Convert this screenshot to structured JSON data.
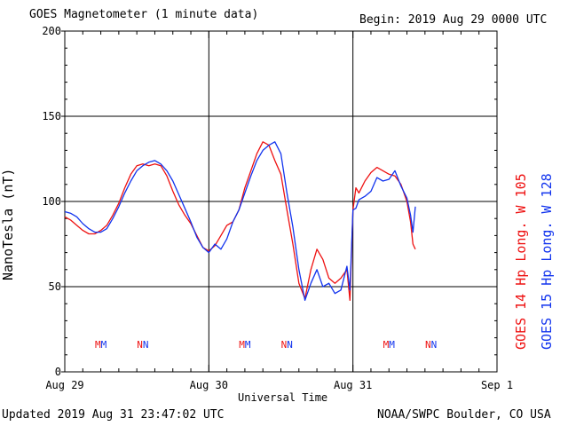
{
  "header": {
    "title": "GOES Magnetometer (1 minute data)",
    "begin": "Begin:  2019 Aug 29 0000 UTC"
  },
  "footer": {
    "updated": "Updated 2019 Aug 31 23:47:02 UTC",
    "credit": "NOAA/SWPC Boulder, CO USA"
  },
  "chart_data": {
    "type": "line",
    "ylabel": "NanoTesla (nT)",
    "xlabel": "Universal Time",
    "ylim": [
      0,
      200
    ],
    "xlim": [
      0,
      72
    ],
    "grid": true,
    "yticks": [
      "0",
      "50",
      "100",
      "150",
      "200"
    ],
    "xticks": [
      {
        "hour": 0,
        "label": "Aug 29"
      },
      {
        "hour": 24,
        "label": "Aug 30"
      },
      {
        "hour": 48,
        "label": "Aug 31"
      },
      {
        "hour": 72,
        "label": "Sep 1"
      }
    ],
    "colors": {
      "red": "#ee1111",
      "blue": "#1133ee"
    },
    "series": [
      {
        "name": "GOES 14 Hp  Long. W 105",
        "color": "#ee1111",
        "points": [
          [
            0,
            91
          ],
          [
            1,
            89
          ],
          [
            2,
            86
          ],
          [
            3,
            83
          ],
          [
            4,
            81
          ],
          [
            5,
            81
          ],
          [
            6,
            83
          ],
          [
            7,
            86
          ],
          [
            8,
            92
          ],
          [
            9,
            99
          ],
          [
            10,
            108
          ],
          [
            11,
            116
          ],
          [
            12,
            121
          ],
          [
            13,
            122
          ],
          [
            14,
            121
          ],
          [
            15,
            122
          ],
          [
            16,
            121
          ],
          [
            17,
            115
          ],
          [
            18,
            106
          ],
          [
            19,
            98
          ],
          [
            20,
            92
          ],
          [
            21,
            87
          ],
          [
            22,
            80
          ],
          [
            23,
            73
          ],
          [
            24,
            71
          ],
          [
            25,
            74
          ],
          [
            26,
            80
          ],
          [
            27,
            86
          ],
          [
            28,
            88
          ],
          [
            29,
            95
          ],
          [
            30,
            108
          ],
          [
            31,
            118
          ],
          [
            32,
            128
          ],
          [
            33,
            135
          ],
          [
            34,
            133
          ],
          [
            35,
            124
          ],
          [
            36,
            116
          ],
          [
            37,
            95
          ],
          [
            38,
            75
          ],
          [
            39,
            52
          ],
          [
            40,
            43
          ],
          [
            41,
            60
          ],
          [
            42,
            72
          ],
          [
            43,
            66
          ],
          [
            44,
            55
          ],
          [
            45,
            52
          ],
          [
            46,
            55
          ],
          [
            47,
            60
          ],
          [
            47.5,
            42
          ],
          [
            48,
            95
          ],
          [
            48.5,
            108
          ],
          [
            49,
            105
          ],
          [
            50,
            112
          ],
          [
            51,
            117
          ],
          [
            52,
            120
          ],
          [
            53,
            118
          ],
          [
            54,
            116
          ],
          [
            55,
            115
          ],
          [
            56,
            110
          ],
          [
            57,
            100
          ],
          [
            57.6,
            88
          ],
          [
            58,
            75
          ],
          [
            58.4,
            72
          ]
        ]
      },
      {
        "name": "GOES 15 Hp  Long. W 128",
        "color": "#1133ee",
        "points": [
          [
            0,
            94
          ],
          [
            1,
            93
          ],
          [
            2,
            91
          ],
          [
            3,
            87
          ],
          [
            4,
            84
          ],
          [
            5,
            82
          ],
          [
            6,
            82
          ],
          [
            7,
            84
          ],
          [
            8,
            90
          ],
          [
            9,
            97
          ],
          [
            10,
            105
          ],
          [
            11,
            112
          ],
          [
            12,
            118
          ],
          [
            13,
            121
          ],
          [
            14,
            123
          ],
          [
            15,
            124
          ],
          [
            16,
            122
          ],
          [
            17,
            118
          ],
          [
            18,
            112
          ],
          [
            19,
            104
          ],
          [
            20,
            96
          ],
          [
            21,
            88
          ],
          [
            22,
            79
          ],
          [
            23,
            73
          ],
          [
            24,
            70
          ],
          [
            25,
            75
          ],
          [
            26,
            72
          ],
          [
            27,
            78
          ],
          [
            28,
            88
          ],
          [
            29,
            95
          ],
          [
            30,
            105
          ],
          [
            31,
            115
          ],
          [
            32,
            124
          ],
          [
            33,
            130
          ],
          [
            34,
            133
          ],
          [
            35,
            135
          ],
          [
            36,
            128
          ],
          [
            37,
            105
          ],
          [
            38,
            85
          ],
          [
            39,
            60
          ],
          [
            40,
            42
          ],
          [
            41,
            52
          ],
          [
            42,
            60
          ],
          [
            43,
            50
          ],
          [
            44,
            52
          ],
          [
            45,
            46
          ],
          [
            46,
            48
          ],
          [
            47,
            62
          ],
          [
            47.5,
            48
          ],
          [
            48,
            95
          ],
          [
            48.5,
            96
          ],
          [
            49,
            101
          ],
          [
            50,
            103
          ],
          [
            51,
            106
          ],
          [
            52,
            114
          ],
          [
            53,
            112
          ],
          [
            54,
            113
          ],
          [
            55,
            118
          ],
          [
            56,
            109
          ],
          [
            57,
            102
          ],
          [
            57.6,
            92
          ],
          [
            58,
            82
          ],
          [
            58.4,
            97
          ]
        ]
      }
    ],
    "annotations": [
      {
        "hour": 6,
        "text": "MM"
      },
      {
        "hour": 13,
        "text": "NN"
      },
      {
        "hour": 30,
        "text": "MM"
      },
      {
        "hour": 37,
        "text": "NN"
      },
      {
        "hour": 54,
        "text": "MM"
      },
      {
        "hour": 61,
        "text": "NN"
      }
    ]
  }
}
